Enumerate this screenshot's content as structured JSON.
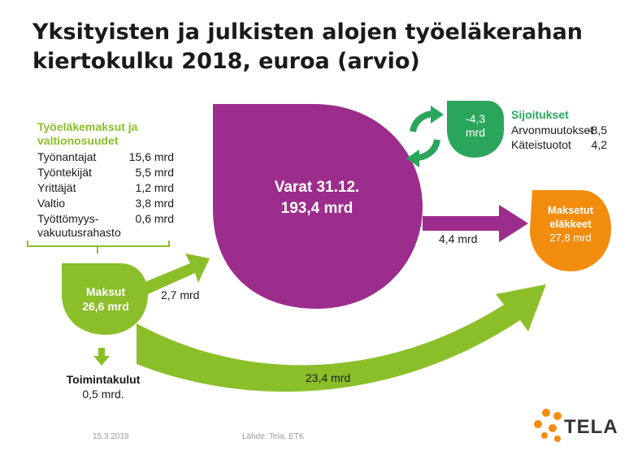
{
  "title": {
    "line1": "Yksityisten ja julkisten alojen työeläkerahan",
    "line2": "kiertokulku 2018, euroa (arvio)"
  },
  "contributions": {
    "heading_line1": "Työeläkemaksut ja",
    "heading_line2": "valtionosuudet",
    "rows": [
      {
        "label": "Työnantajat",
        "value": "15,6 mrd"
      },
      {
        "label": "Työntekijät",
        "value": "5,5 mrd"
      },
      {
        "label": "Yrittäjät",
        "value": "1,2 mrd"
      },
      {
        "label": "Valtio",
        "value": "3,8 mrd"
      },
      {
        "label": "Työttömyys-",
        "value": "0,6 mrd"
      },
      {
        "label": "vakuutusrahasto",
        "value": ""
      }
    ]
  },
  "maksut": {
    "label": "Maksut",
    "value": "26,6 mrd"
  },
  "varat": {
    "label": "Varat 31.12.",
    "value": "193,4 mrd"
  },
  "investments": {
    "bubble_value": "-4,3",
    "bubble_unit": "mrd",
    "heading": "Sijoitukset",
    "rows": [
      {
        "label": "Arvonmuutokset",
        "value": "-8,5"
      },
      {
        "label": "Käteistuotot",
        "value": "4,2"
      }
    ]
  },
  "pensions": {
    "line1": "Maksetut",
    "line2": "eläkkeet",
    "value": "27,8 mrd"
  },
  "flows": {
    "to_varat": "2,7 mrd",
    "varat_to_pensions": "4,4 mrd",
    "direct_to_pensions": "23,4 mrd"
  },
  "operating_costs": {
    "label": "Toimintakulut",
    "value": "0,5 mrd."
  },
  "footer": {
    "date": "15.3.2019",
    "source": "Lähde: Tela, ETK"
  },
  "logo": {
    "text": "TELA"
  },
  "colors": {
    "green": "#8bbf2a",
    "purple": "#9c2d8c",
    "teal": "#2aa65c",
    "orange": "#f28c0f",
    "logo_orange": "#f28c0f"
  }
}
